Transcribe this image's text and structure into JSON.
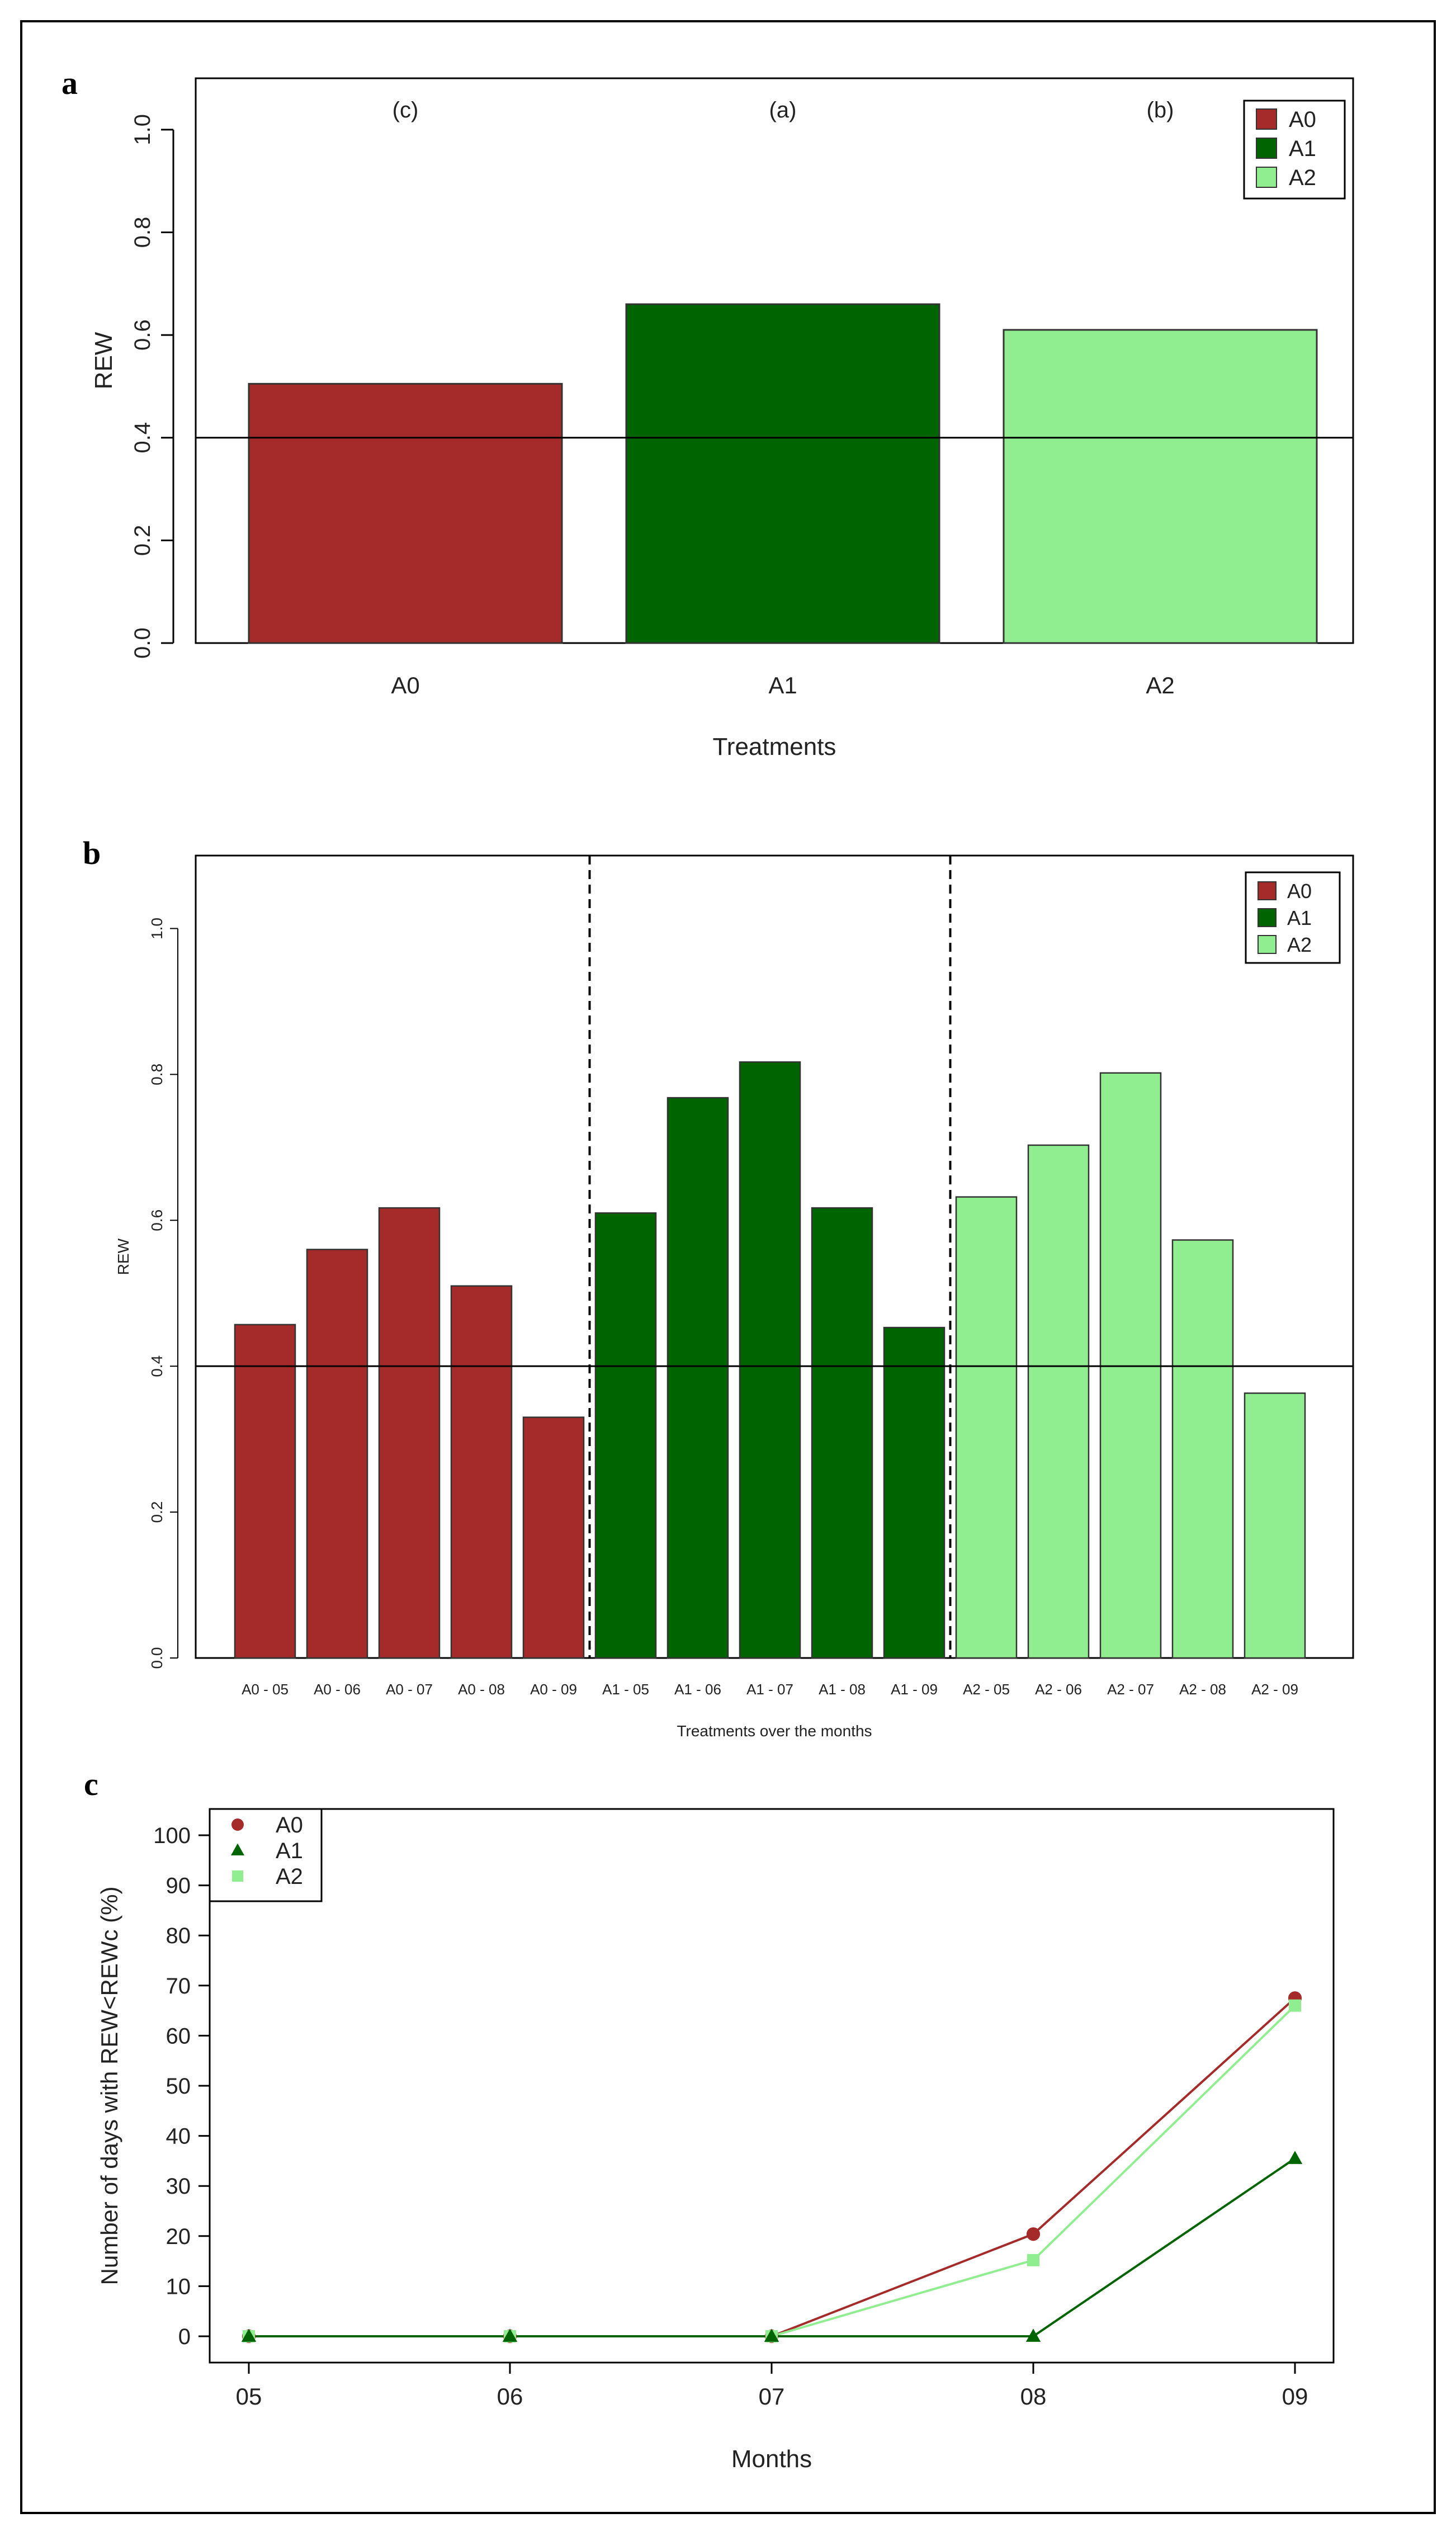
{
  "figure": {
    "panel_letters": [
      "a",
      "b",
      "c"
    ]
  },
  "colors": {
    "A0": "#a52a2a",
    "A1": "#006400",
    "A2": "#90ee90",
    "frame": "#000000",
    "dash": "#000000"
  },
  "chart_data": [
    {
      "type": "bar",
      "panel": "a",
      "title": "",
      "xlabel": "Treatments",
      "ylabel": "REW",
      "ylim": [
        0,
        1.1
      ],
      "yticks": [
        "0.0",
        "0.2",
        "0.4",
        "0.6",
        "0.8",
        "1.0"
      ],
      "yticks_values": [
        0,
        0.2,
        0.4,
        0.6,
        0.8,
        1.0
      ],
      "categories": [
        "A0",
        "A1",
        "A2"
      ],
      "values": [
        0.505,
        0.66,
        0.61
      ],
      "significance_letters": [
        "(c)",
        "(a)",
        "(b)"
      ],
      "reference_line": 0.4,
      "legend": {
        "position": "top-right",
        "entries": [
          "A0",
          "A1",
          "A2"
        ]
      }
    },
    {
      "type": "bar",
      "panel": "b",
      "title": "",
      "xlabel": "Treatments over the months",
      "ylabel": "REW",
      "ylim": [
        0,
        1.1
      ],
      "yticks": [
        "0.0",
        "0.2",
        "0.4",
        "0.6",
        "0.8",
        "1.0"
      ],
      "yticks_values": [
        0,
        0.2,
        0.4,
        0.6,
        0.8,
        1.0
      ],
      "categories": [
        "A0 - 05",
        "A0 - 06",
        "A0 - 07",
        "A0 - 08",
        "A0 - 09",
        "A1 - 05",
        "A1 - 06",
        "A1 - 07",
        "A1 - 08",
        "A1 - 09",
        "A2 - 05",
        "A2 - 06",
        "A2 - 07",
        "A2 - 08",
        "A2 - 09"
      ],
      "groups": [
        "A0",
        "A0",
        "A0",
        "A0",
        "A0",
        "A1",
        "A1",
        "A1",
        "A1",
        "A1",
        "A2",
        "A2",
        "A2",
        "A2",
        "A2"
      ],
      "values": [
        0.457,
        0.56,
        0.617,
        0.51,
        0.33,
        0.61,
        0.768,
        0.817,
        0.617,
        0.453,
        0.632,
        0.703,
        0.802,
        0.573,
        0.363
      ],
      "reference_line": 0.4,
      "group_separators_after_index": [
        4,
        9
      ],
      "legend": {
        "position": "top-right",
        "entries": [
          "A0",
          "A1",
          "A2"
        ]
      }
    },
    {
      "type": "line",
      "panel": "c",
      "title": "",
      "xlabel": "Months",
      "ylabel": "Number of days with REW<REWc (%)",
      "ylim": [
        0,
        100
      ],
      "yticks": [
        "0",
        "10",
        "20",
        "30",
        "40",
        "50",
        "60",
        "70",
        "80",
        "90",
        "100"
      ],
      "yticks_values": [
        0,
        10,
        20,
        30,
        40,
        50,
        60,
        70,
        80,
        90,
        100
      ],
      "x": [
        "05",
        "06",
        "07",
        "08",
        "09"
      ],
      "series": [
        {
          "name": "A0",
          "marker": "circle",
          "values": [
            0,
            0,
            0,
            20.4,
            67.5
          ]
        },
        {
          "name": "A1",
          "marker": "triangle",
          "values": [
            0,
            0,
            0,
            0,
            35.5
          ]
        },
        {
          "name": "A2",
          "marker": "square",
          "values": [
            0,
            0,
            0,
            15.2,
            66
          ]
        }
      ],
      "legend": {
        "position": "top-left",
        "entries": [
          "A0",
          "A1",
          "A2"
        ]
      }
    }
  ]
}
